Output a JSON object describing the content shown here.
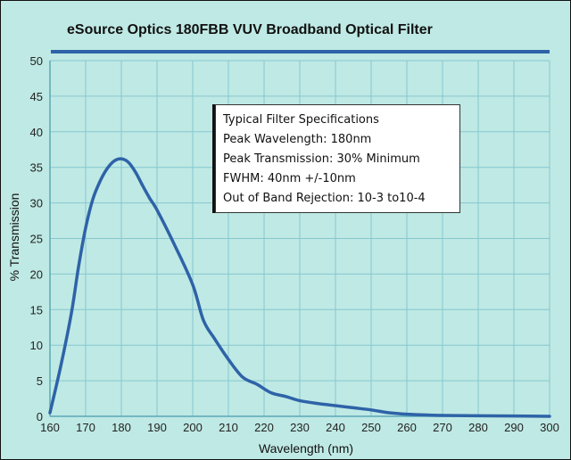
{
  "chart_data": {
    "type": "line",
    "title": "eSource Optics 180FBB VUV Broadband Optical Filter",
    "xlabel": "Wavelength (nm)",
    "ylabel": "% Transmission",
    "xlim": [
      160,
      300
    ],
    "ylim": [
      0,
      50
    ],
    "x_ticks": [
      "160",
      "170",
      "180",
      "190",
      "200",
      "210",
      "220",
      "230",
      "240",
      "250",
      "260",
      "270",
      "280",
      "290",
      "300"
    ],
    "y_ticks": [
      "0",
      "5",
      "10",
      "15",
      "20",
      "25",
      "30",
      "35",
      "40",
      "45",
      "50"
    ],
    "grid": true,
    "colors": {
      "line": "#2e63a8",
      "grid": "#86c7d0",
      "background": "#bfe9e4",
      "title_bar": "#2e63a8"
    },
    "series": [
      {
        "x": [
          160,
          163,
          166,
          168,
          170,
          172,
          174,
          176,
          178,
          180,
          182,
          184,
          186,
          188,
          190,
          195,
          200,
          203,
          206,
          210,
          214,
          218,
          222,
          226,
          230,
          235,
          240,
          245,
          250,
          255,
          260,
          265,
          270,
          280,
          290,
          300
        ],
        "y": [
          0.5,
          7,
          14.5,
          21,
          26.5,
          30.5,
          33,
          34.8,
          35.9,
          36.2,
          35.7,
          34.3,
          32.4,
          30.6,
          29,
          24,
          18.5,
          13.5,
          11,
          8,
          5.5,
          4.5,
          3.3,
          2.8,
          2.2,
          1.8,
          1.5,
          1.2,
          0.9,
          0.5,
          0.3,
          0.2,
          0.12,
          0.08,
          0.05,
          0.0
        ]
      }
    ],
    "spec_box": {
      "lines": [
        "Typical Filter Specifications",
        "Peak Wavelength: 180nm",
        "Peak Transmission: 30% Minimum",
        "FWHM: 40nm +/-10nm",
        "Out of Band Rejection: 10-3 to10-4"
      ]
    }
  }
}
